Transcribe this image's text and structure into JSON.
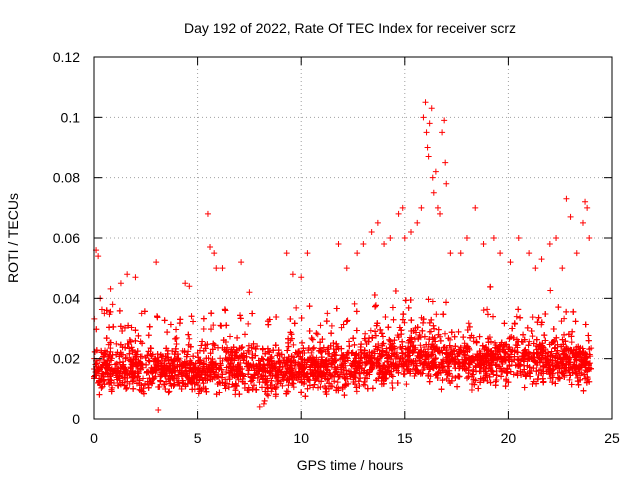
{
  "chart_data": {
    "type": "scatter",
    "title": "Day 192 of 2022, Rate Of TEC Index for receiver scrz",
    "xlabel": "GPS time / hours",
    "ylabel": "ROTI / TECUs",
    "xlim": [
      0,
      25
    ],
    "ylim": [
      0,
      0.12
    ],
    "xticks": [
      0,
      5,
      10,
      15,
      20,
      25
    ],
    "yticks": [
      0,
      0.02,
      0.04,
      0.06,
      0.08,
      0.1,
      0.12
    ],
    "xtick_labels": [
      "0",
      "5",
      "10",
      "15",
      "20",
      "25"
    ],
    "ytick_labels": [
      "0",
      "0.02",
      "0.04",
      "0.06",
      "0.08",
      "0.1",
      "0.12"
    ],
    "grid": true,
    "marker": "+",
    "color": "#ff0000",
    "series": [
      {
        "name": "ROTI",
        "points": [
          [
            0.1,
            0.056
          ],
          [
            0.2,
            0.054
          ],
          [
            0.3,
            0.04
          ],
          [
            0.5,
            0.035
          ],
          [
            0.9,
            0.038
          ],
          [
            1.3,
            0.045
          ],
          [
            1.6,
            0.048
          ],
          [
            2.0,
            0.047
          ],
          [
            2.3,
            0.035
          ],
          [
            3.0,
            0.052
          ],
          [
            3.1,
            0.003
          ],
          [
            4.4,
            0.045
          ],
          [
            4.6,
            0.044
          ],
          [
            5.5,
            0.068
          ],
          [
            5.6,
            0.057
          ],
          [
            5.8,
            0.055
          ],
          [
            5.9,
            0.05
          ],
          [
            6.2,
            0.05
          ],
          [
            7.1,
            0.052
          ],
          [
            7.5,
            0.042
          ],
          [
            8.0,
            0.004
          ],
          [
            8.2,
            0.005
          ],
          [
            9.3,
            0.055
          ],
          [
            9.6,
            0.048
          ],
          [
            10.0,
            0.047
          ],
          [
            10.3,
            0.055
          ],
          [
            11.8,
            0.058
          ],
          [
            12.2,
            0.05
          ],
          [
            12.7,
            0.055
          ],
          [
            13.0,
            0.058
          ],
          [
            13.4,
            0.062
          ],
          [
            13.7,
            0.065
          ],
          [
            14.0,
            0.058
          ],
          [
            14.3,
            0.06
          ],
          [
            14.7,
            0.068
          ],
          [
            14.9,
            0.07
          ],
          [
            15.0,
            0.06
          ],
          [
            15.3,
            0.062
          ],
          [
            15.6,
            0.065
          ],
          [
            15.8,
            0.07
          ],
          [
            15.9,
            0.1
          ],
          [
            16.0,
            0.105
          ],
          [
            16.05,
            0.095
          ],
          [
            16.1,
            0.09
          ],
          [
            16.15,
            0.087
          ],
          [
            16.2,
            0.098
          ],
          [
            16.3,
            0.103
          ],
          [
            16.35,
            0.08
          ],
          [
            16.4,
            0.075
          ],
          [
            16.5,
            0.082
          ],
          [
            16.6,
            0.07
          ],
          [
            16.7,
            0.068
          ],
          [
            16.8,
            0.095
          ],
          [
            16.9,
            0.099
          ],
          [
            16.95,
            0.085
          ],
          [
            17.0,
            0.078
          ],
          [
            17.2,
            0.055
          ],
          [
            17.7,
            0.055
          ],
          [
            18.0,
            0.06
          ],
          [
            18.4,
            0.07
          ],
          [
            18.8,
            0.058
          ],
          [
            19.3,
            0.06
          ],
          [
            19.6,
            0.055
          ],
          [
            20.1,
            0.052
          ],
          [
            20.5,
            0.06
          ],
          [
            21.0,
            0.055
          ],
          [
            21.3,
            0.05
          ],
          [
            21.6,
            0.053
          ],
          [
            22.0,
            0.058
          ],
          [
            22.3,
            0.06
          ],
          [
            22.6,
            0.05
          ],
          [
            22.8,
            0.073
          ],
          [
            23.0,
            0.067
          ],
          [
            23.3,
            0.055
          ],
          [
            23.6,
            0.065
          ],
          [
            23.7,
            0.072
          ],
          [
            23.8,
            0.07
          ],
          [
            23.9,
            0.06
          ]
        ]
      }
    ]
  }
}
